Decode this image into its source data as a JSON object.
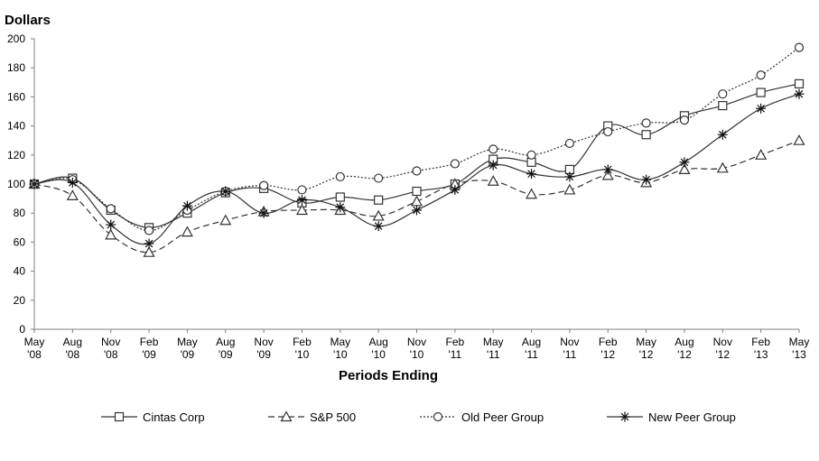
{
  "chart_data": {
    "type": "line",
    "ylabel": "Dollars",
    "xlabel": "Periods Ending",
    "ylim": [
      0,
      200
    ],
    "yticks": [
      0,
      20,
      40,
      60,
      80,
      100,
      120,
      140,
      160,
      180,
      200
    ],
    "grid": false,
    "legend_position": "bottom",
    "categories": [
      {
        "month": "May",
        "year": "'08"
      },
      {
        "month": "Aug",
        "year": "'08"
      },
      {
        "month": "Nov",
        "year": "'08"
      },
      {
        "month": "Feb",
        "year": "'09"
      },
      {
        "month": "May",
        "year": "'09"
      },
      {
        "month": "Aug",
        "year": "'09"
      },
      {
        "month": "Nov",
        "year": "'09"
      },
      {
        "month": "Feb",
        "year": "'10"
      },
      {
        "month": "May",
        "year": "'10"
      },
      {
        "month": "Aug",
        "year": "'10"
      },
      {
        "month": "Nov",
        "year": "'10"
      },
      {
        "month": "Feb",
        "year": "'11"
      },
      {
        "month": "May",
        "year": "'11"
      },
      {
        "month": "Aug",
        "year": "'11"
      },
      {
        "month": "Nov",
        "year": "'11"
      },
      {
        "month": "Feb",
        "year": "'12"
      },
      {
        "month": "May",
        "year": "'12"
      },
      {
        "month": "Aug",
        "year": "'12"
      },
      {
        "month": "Nov",
        "year": "'12"
      },
      {
        "month": "Feb",
        "year": "'13"
      },
      {
        "month": "May",
        "year": "'13"
      }
    ],
    "series": [
      {
        "name": "Cintas Corp",
        "marker": "square",
        "dash": "solid",
        "values": [
          100,
          104,
          82,
          70,
          80,
          94,
          97,
          87,
          91,
          89,
          95,
          100,
          117,
          115,
          110,
          140,
          134,
          147,
          154,
          163,
          169
        ]
      },
      {
        "name": "S&P 500",
        "marker": "triangle",
        "dash": "dashed",
        "values": [
          100,
          92,
          65,
          53,
          67,
          75,
          81,
          82,
          82,
          78,
          88,
          100,
          102,
          93,
          96,
          106,
          101,
          110,
          111,
          120,
          130
        ]
      },
      {
        "name": "Old Peer Group",
        "marker": "circle",
        "dash": "dotted",
        "values": [
          100,
          103,
          83,
          68,
          82,
          95,
          99,
          96,
          105,
          104,
          109,
          114,
          124,
          120,
          128,
          136,
          142,
          144,
          162,
          175,
          194
        ]
      },
      {
        "name": "New Peer Group",
        "marker": "star",
        "dash": "solid",
        "values": [
          100,
          101,
          72,
          59,
          85,
          95,
          80,
          89,
          84,
          71,
          82,
          96,
          113,
          107,
          105,
          110,
          103,
          115,
          134,
          152,
          162
        ]
      }
    ]
  }
}
